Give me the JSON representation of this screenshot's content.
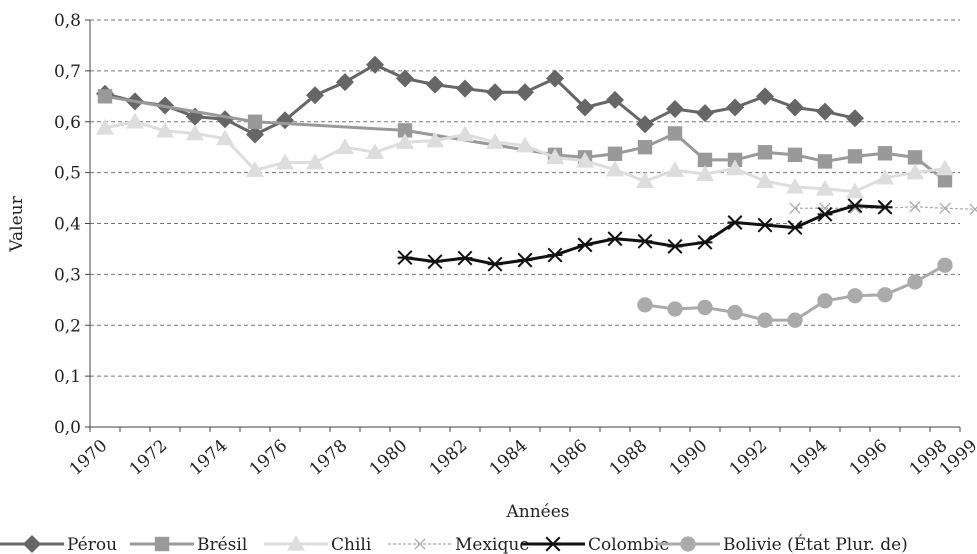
{
  "chart_data": {
    "type": "line",
    "title": "",
    "xlabel": "Années",
    "ylabel": "Valeur",
    "ylim": [
      0,
      0.8
    ],
    "yticks": [
      "0,0",
      "0,1",
      "0,2",
      "0,3",
      "0,4",
      "0,5",
      "0,6",
      "0,7",
      "0,8"
    ],
    "xlim": [
      1970,
      1999
    ],
    "xticks": [
      "1970",
      "1972",
      "1974",
      "1976",
      "1978",
      "1980",
      "1982",
      "1984",
      "1986",
      "1988",
      "1990",
      "1992",
      "1994",
      "1996",
      "1998",
      "1999"
    ],
    "grid": "horizontal dashed",
    "legend_position": "bottom",
    "series": [
      {
        "name": "Pérou",
        "color": "#666666",
        "marker": "diamond",
        "dashed": false,
        "points": [
          [
            1970,
            0.655
          ],
          [
            1971,
            0.64
          ],
          [
            1972,
            0.632
          ],
          [
            1973,
            0.61
          ],
          [
            1974,
            0.605
          ],
          [
            1975,
            0.575
          ],
          [
            1976,
            0.603
          ],
          [
            1977,
            0.652
          ],
          [
            1978,
            0.678
          ],
          [
            1979,
            0.712
          ],
          [
            1980,
            0.685
          ],
          [
            1981,
            0.673
          ],
          [
            1982,
            0.665
          ],
          [
            1983,
            0.658
          ],
          [
            1984,
            0.658
          ],
          [
            1985,
            0.685
          ],
          [
            1986,
            0.628
          ],
          [
            1987,
            0.643
          ],
          [
            1988,
            0.595
          ],
          [
            1989,
            0.625
          ],
          [
            1990,
            0.617
          ],
          [
            1991,
            0.628
          ],
          [
            1992,
            0.65
          ],
          [
            1993,
            0.628
          ],
          [
            1994,
            0.62
          ],
          [
            1995,
            0.607
          ]
        ]
      },
      {
        "name": "Brésil",
        "color": "#999999",
        "marker": "square",
        "dashed": false,
        "points": [
          [
            1970,
            0.65
          ],
          [
            1975,
            0.6
          ],
          [
            1980,
            0.583
          ],
          [
            1985,
            0.535
          ],
          [
            1986,
            0.53
          ],
          [
            1987,
            0.537
          ],
          [
            1988,
            0.55
          ],
          [
            1989,
            0.577
          ],
          [
            1990,
            0.525
          ],
          [
            1991,
            0.525
          ],
          [
            1992,
            0.54
          ],
          [
            1993,
            0.535
          ],
          [
            1994,
            0.522
          ],
          [
            1995,
            0.532
          ],
          [
            1996,
            0.538
          ],
          [
            1997,
            0.53
          ],
          [
            1998,
            0.485
          ]
        ]
      },
      {
        "name": "Chili",
        "color": "#dddddd",
        "marker": "triangle",
        "dashed": false,
        "points": [
          [
            1970,
            0.588
          ],
          [
            1971,
            0.6
          ],
          [
            1972,
            0.582
          ],
          [
            1973,
            0.577
          ],
          [
            1974,
            0.567
          ],
          [
            1975,
            0.505
          ],
          [
            1976,
            0.52
          ],
          [
            1977,
            0.52
          ],
          [
            1978,
            0.55
          ],
          [
            1979,
            0.54
          ],
          [
            1980,
            0.56
          ],
          [
            1981,
            0.563
          ],
          [
            1982,
            0.575
          ],
          [
            1983,
            0.56
          ],
          [
            1984,
            0.553
          ],
          [
            1985,
            0.53
          ],
          [
            1986,
            0.523
          ],
          [
            1987,
            0.506
          ],
          [
            1988,
            0.483
          ],
          [
            1989,
            0.505
          ],
          [
            1990,
            0.497
          ],
          [
            1991,
            0.508
          ],
          [
            1992,
            0.483
          ],
          [
            1993,
            0.472
          ],
          [
            1994,
            0.468
          ],
          [
            1995,
            0.463
          ],
          [
            1996,
            0.49
          ],
          [
            1997,
            0.5
          ],
          [
            1998,
            0.508
          ]
        ]
      },
      {
        "name": "Mexique",
        "color": "#aaaaaa",
        "marker": "x",
        "dashed": true,
        "points": [
          [
            1993,
            0.43
          ],
          [
            1994,
            0.43
          ],
          [
            1995,
            0.43
          ],
          [
            1996,
            0.43
          ],
          [
            1997,
            0.433
          ],
          [
            1998,
            0.43
          ],
          [
            1999,
            0.428
          ]
        ]
      },
      {
        "name": "Colombie",
        "color": "#111111",
        "marker": "asterisk",
        "dashed": false,
        "points": [
          [
            1980,
            0.333
          ],
          [
            1981,
            0.325
          ],
          [
            1982,
            0.332
          ],
          [
            1983,
            0.32
          ],
          [
            1984,
            0.328
          ],
          [
            1985,
            0.338
          ],
          [
            1986,
            0.358
          ],
          [
            1987,
            0.37
          ],
          [
            1988,
            0.365
          ],
          [
            1989,
            0.355
          ],
          [
            1990,
            0.363
          ],
          [
            1991,
            0.402
          ],
          [
            1992,
            0.397
          ],
          [
            1993,
            0.392
          ],
          [
            1994,
            0.418
          ],
          [
            1995,
            0.435
          ],
          [
            1996,
            0.432
          ]
        ]
      },
      {
        "name": "Bolivie (État Plur. de)",
        "color": "#aaaaaa",
        "marker": "circle",
        "dashed": false,
        "points": [
          [
            1988,
            0.24
          ],
          [
            1989,
            0.232
          ],
          [
            1990,
            0.235
          ],
          [
            1991,
            0.225
          ],
          [
            1992,
            0.21
          ],
          [
            1993,
            0.21
          ],
          [
            1994,
            0.248
          ],
          [
            1995,
            0.258
          ],
          [
            1996,
            0.26
          ],
          [
            1997,
            0.285
          ],
          [
            1998,
            0.318
          ]
        ]
      }
    ]
  }
}
